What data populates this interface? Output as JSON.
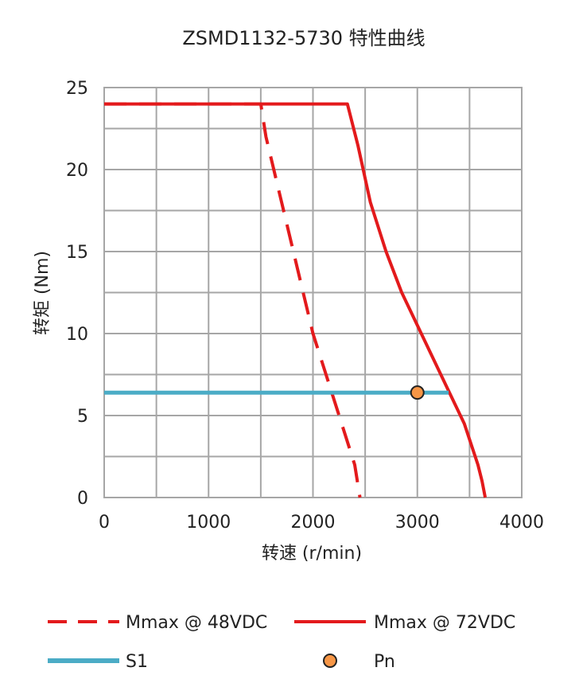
{
  "chart_data": {
    "type": "line",
    "title": "ZSMD1132-5730 特性曲线",
    "xlabel": "转速 (r/min)",
    "ylabel": "转矩 (Nm)",
    "xlim": [
      0,
      4000
    ],
    "ylim": [
      0,
      25
    ],
    "x_ticks": [
      "0",
      "1000",
      "2000",
      "3000",
      "4000"
    ],
    "y_ticks": [
      "0",
      "5",
      "10",
      "15",
      "20",
      "25"
    ],
    "grid": true,
    "legend_position": "bottom",
    "series": [
      {
        "name": "Mmax @ 48VDC",
        "type": "line",
        "style": "dashed",
        "color": "#e31a1c",
        "x": [
          0,
          1500,
          1550,
          1700,
          1850,
          2000,
          2150,
          2300,
          2400,
          2450
        ],
        "y": [
          24,
          24,
          22,
          18,
          14,
          10,
          7,
          4,
          2,
          0
        ]
      },
      {
        "name": "Mmax @ 72VDC",
        "type": "line",
        "style": "solid",
        "color": "#e31a1c",
        "x": [
          0,
          2330,
          2430,
          2550,
          2700,
          2850,
          3000,
          3150,
          3300,
          3450,
          3580,
          3620,
          3650
        ],
        "y": [
          24,
          24,
          21.5,
          18,
          15,
          12.5,
          10.5,
          8.5,
          6.5,
          4.5,
          2,
          1,
          0
        ]
      },
      {
        "name": "S1",
        "type": "line",
        "style": "solid",
        "color": "#4bacc6",
        "x": [
          0,
          3300
        ],
        "y": [
          6.4,
          6.4
        ]
      },
      {
        "name": "Pn",
        "type": "scatter",
        "color": "#f79646",
        "x": [
          3000
        ],
        "y": [
          6.4
        ]
      }
    ]
  }
}
